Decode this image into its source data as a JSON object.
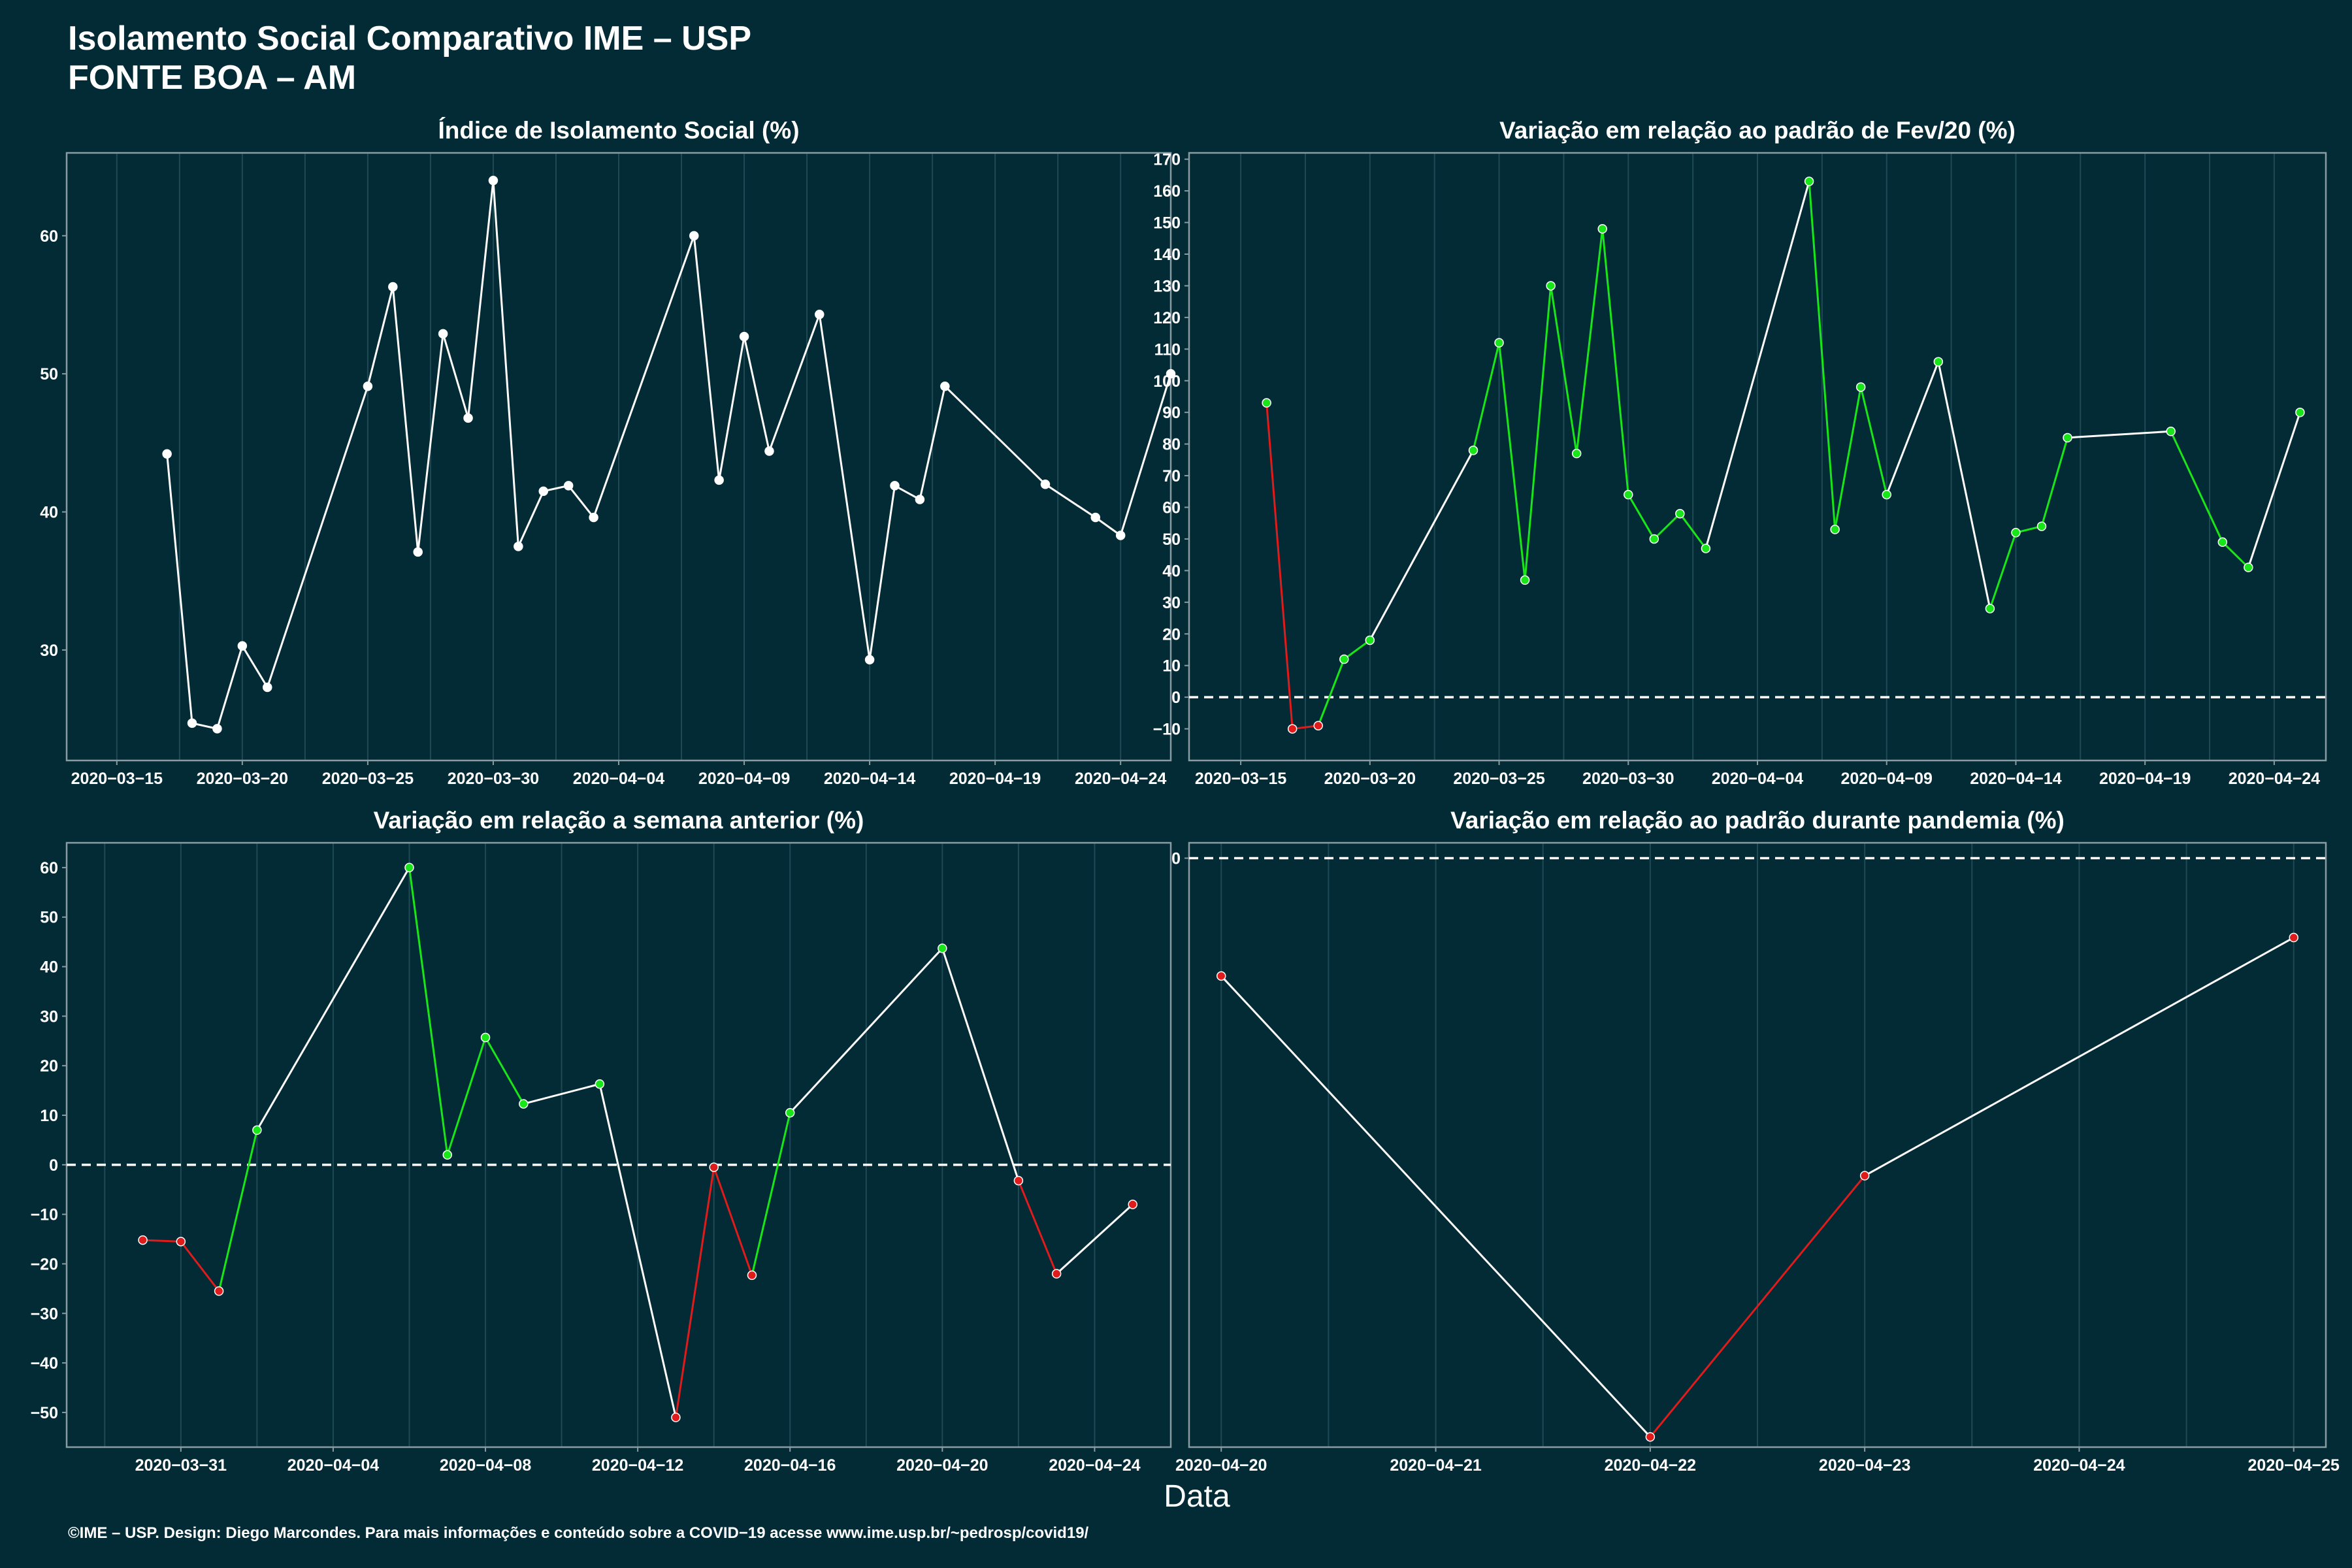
{
  "header": {
    "title_line1": "Isolamento Social Comparativo IME – USP",
    "title_line2": "FONTE BOA – AM"
  },
  "footer": {
    "xlabel": "Data",
    "credit": "©IME – USP. Design: Diego Marcondes. Para mais informações e conteúdo sobre a COVID−19 acesse www.ime.usp.br/~pedrosp/covid19/"
  },
  "colors": {
    "background": "#022b36",
    "panel_border": "#8a9ba1",
    "grid": "#1f4a55",
    "neutral": "#ffffff",
    "positive": "#19e619",
    "negative": "#e01b1b"
  },
  "chart_data": [
    {
      "type": "line",
      "title": "Índice de Isolamento Social (%)",
      "ylim": [
        22,
        66
      ],
      "yticks": [
        30,
        40,
        50,
        60
      ],
      "xlim": [
        "2020-03-13",
        "2020-04-26"
      ],
      "xticks": [
        "2020-03-15",
        "2020-03-20",
        "2020-03-25",
        "2020-03-30",
        "2020-04-04",
        "2020-04-09",
        "2020-04-14",
        "2020-04-19",
        "2020-04-24"
      ],
      "grid": true,
      "series": [
        {
          "x": [
            "2020-03-17",
            "2020-03-18",
            "2020-03-19",
            "2020-03-20",
            "2020-03-21",
            "2020-03-25",
            "2020-03-26",
            "2020-03-27",
            "2020-03-28",
            "2020-03-29",
            "2020-03-30",
            "2020-03-31",
            "2020-04-01",
            "2020-04-02",
            "2020-04-03",
            "2020-04-07",
            "2020-04-08",
            "2020-04-09",
            "2020-04-10",
            "2020-04-12",
            "2020-04-14",
            "2020-04-15",
            "2020-04-16",
            "2020-04-17",
            "2020-04-21",
            "2020-04-23",
            "2020-04-24",
            "2020-04-26"
          ],
          "y": [
            44.2,
            24.7,
            24.3,
            30.3,
            27.3,
            49.1,
            56.3,
            37.1,
            52.9,
            46.8,
            64.0,
            37.5,
            41.5,
            41.9,
            39.6,
            60.0,
            42.3,
            52.7,
            44.4,
            54.3,
            29.3,
            41.9,
            40.9,
            49.1,
            42.0,
            39.6,
            38.3,
            50.0
          ],
          "colors": [
            "#ffffff",
            "#ffffff",
            "#ffffff",
            "#ffffff",
            "#ffffff",
            "#ffffff",
            "#ffffff",
            "#ffffff",
            "#ffffff",
            "#ffffff",
            "#ffffff",
            "#ffffff",
            "#ffffff",
            "#ffffff",
            "#ffffff",
            "#ffffff",
            "#ffffff",
            "#ffffff",
            "#ffffff",
            "#ffffff",
            "#ffffff",
            "#ffffff",
            "#ffffff",
            "#ffffff",
            "#ffffff",
            "#ffffff",
            "#ffffff",
            "#ffffff"
          ]
        }
      ]
    },
    {
      "type": "line",
      "title": "Variação em relação ao padrão de Fev/20 (%)",
      "ylim": [
        -20,
        172
      ],
      "yticks": [
        -10,
        0,
        10,
        20,
        30,
        40,
        50,
        60,
        70,
        80,
        90,
        100,
        110,
        120,
        130,
        140,
        150,
        160,
        170
      ],
      "xlim": [
        "2020-03-13",
        "2020-04-26"
      ],
      "xticks": [
        "2020-03-15",
        "2020-03-20",
        "2020-03-25",
        "2020-03-30",
        "2020-04-04",
        "2020-04-09",
        "2020-04-14",
        "2020-04-19",
        "2020-04-24"
      ],
      "zero_line": 0,
      "grid": true,
      "series": [
        {
          "x": [
            "2020-03-16",
            "2020-03-17",
            "2020-03-18",
            "2020-03-19",
            "2020-03-20",
            "2020-03-24",
            "2020-03-25",
            "2020-03-26",
            "2020-03-27",
            "2020-03-28",
            "2020-03-29",
            "2020-03-30",
            "2020-03-31",
            "2020-04-01",
            "2020-04-02",
            "2020-04-06",
            "2020-04-07",
            "2020-04-08",
            "2020-04-09",
            "2020-04-11",
            "2020-04-13",
            "2020-04-14",
            "2020-04-15",
            "2020-04-16",
            "2020-04-20",
            "2020-04-22",
            "2020-04-23",
            "2020-04-25"
          ],
          "y": [
            93,
            -10,
            -9,
            12,
            18,
            78,
            112,
            37,
            130,
            77,
            148,
            64,
            50,
            58,
            47,
            163,
            53,
            98,
            64,
            106,
            28,
            52,
            54,
            82,
            84,
            49,
            41,
            90
          ],
          "colors": [
            "#19e619",
            "#e01b1b",
            "#e01b1b",
            "#19e619",
            "#19e619",
            "#19e619",
            "#19e619",
            "#19e619",
            "#19e619",
            "#19e619",
            "#19e619",
            "#19e619",
            "#19e619",
            "#19e619",
            "#19e619",
            "#19e619",
            "#19e619",
            "#19e619",
            "#19e619",
            "#19e619",
            "#19e619",
            "#19e619",
            "#19e619",
            "#19e619",
            "#19e619",
            "#19e619",
            "#19e619",
            "#19e619"
          ],
          "segment_colors": [
            "#e01b1b",
            "#e01b1b",
            "#19e619",
            "#19e619",
            "#ffffff",
            "#19e619",
            "#19e619",
            "#19e619",
            "#19e619",
            "#19e619",
            "#19e619",
            "#19e619",
            "#19e619",
            "#19e619",
            "#ffffff",
            "#19e619",
            "#19e619",
            "#19e619",
            "#ffffff",
            "#ffffff",
            "#19e619",
            "#19e619",
            "#19e619",
            "#ffffff",
            "#19e619",
            "#19e619",
            "#ffffff"
          ]
        }
      ]
    },
    {
      "type": "line",
      "title": "Variação em relação a semana anterior (%)",
      "ylim": [
        -57,
        65
      ],
      "yticks": [
        -50,
        -40,
        -30,
        -20,
        -10,
        0,
        10,
        20,
        30,
        40,
        50,
        60
      ],
      "xlim": [
        "2020-03-28",
        "2020-04-26"
      ],
      "xticks": [
        "2020-03-31",
        "2020-04-04",
        "2020-04-08",
        "2020-04-12",
        "2020-04-16",
        "2020-04-20",
        "2020-04-24"
      ],
      "zero_line": 0,
      "grid": true,
      "series": [
        {
          "x": [
            "2020-03-30",
            "2020-03-31",
            "2020-04-01",
            "2020-04-02",
            "2020-04-06",
            "2020-04-07",
            "2020-04-08",
            "2020-04-09",
            "2020-04-11",
            "2020-04-13",
            "2020-04-14",
            "2020-04-15",
            "2020-04-16",
            "2020-04-20",
            "2020-04-22",
            "2020-04-23",
            "2020-04-25"
          ],
          "y": [
            -15.2,
            -15.5,
            -25.5,
            7,
            60,
            2,
            25.7,
            12.3,
            16.3,
            -51,
            -0.5,
            -22.3,
            10.5,
            43.7,
            -3.2,
            -22,
            -8
          ],
          "colors": [
            "#e01b1b",
            "#e01b1b",
            "#e01b1b",
            "#19e619",
            "#19e619",
            "#19e619",
            "#19e619",
            "#19e619",
            "#19e619",
            "#e01b1b",
            "#e01b1b",
            "#e01b1b",
            "#19e619",
            "#19e619",
            "#e01b1b",
            "#e01b1b",
            "#e01b1b"
          ],
          "segment_colors": [
            "#e01b1b",
            "#e01b1b",
            "#19e619",
            "#ffffff",
            "#19e619",
            "#19e619",
            "#19e619",
            "#ffffff",
            "#ffffff",
            "#e01b1b",
            "#e01b1b",
            "#19e619",
            "#ffffff",
            "#ffffff",
            "#e01b1b",
            "#ffffff"
          ]
        }
      ]
    },
    {
      "type": "line",
      "title": "Variação em relação ao padrão durante pandemia (%)",
      "ylim": [
        -115,
        3
      ],
      "yticks": [
        0
      ],
      "xlim": [
        "2020-04-19.85",
        "2020-04-25.15"
      ],
      "xticks": [
        "2020-04-20",
        "2020-04-21",
        "2020-04-22",
        "2020-04-23",
        "2020-04-24",
        "2020-04-25"
      ],
      "zero_line": 0,
      "grid": true,
      "series": [
        {
          "x": [
            "2020-04-20",
            "2020-04-22",
            "2020-04-23",
            "2020-04-25"
          ],
          "y": [
            -23,
            -113,
            -62,
            -15.5
          ],
          "colors": [
            "#e01b1b",
            "#e01b1b",
            "#e01b1b",
            "#e01b1b"
          ],
          "segment_colors": [
            "#ffffff",
            "#e01b1b",
            "#ffffff"
          ]
        }
      ]
    }
  ]
}
